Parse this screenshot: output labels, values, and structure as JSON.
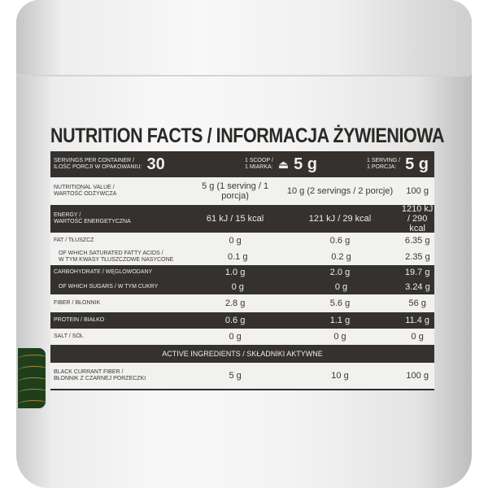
{
  "title": "NUTRITION FACTS / INFORMACJA ŻYWIENIOWA",
  "header": {
    "servings_label_en": "SERVINGS PER CONTAINER /",
    "servings_label_pl": "ILOŚĆ PORCJI W OPAKOWANIU:",
    "servings": "30",
    "scoop_en": "1 SCOOP /",
    "scoop_pl": "1 MIARKA:",
    "scoop_value": "5 g",
    "serving_en": "1 SERVING /",
    "serving_pl": "1 PORCJA:",
    "serving_value": "5 g"
  },
  "columns": {
    "label_en": "NUTRITIONAL VALUE /",
    "label_pl": "WARTOŚĆ ODŻYWCZA",
    "c1": "5 g (1 serving / 1 porcja)",
    "c2": "10 g (2 servings / 2 porcje)",
    "c3": "100 g"
  },
  "rows": [
    {
      "en": "ENERGY /",
      "pl": "WARTOŚĆ ENERGETYCZNA",
      "v": [
        "61 kJ / 15 kcal",
        "121 kJ / 29 kcal",
        "1210 kJ / 290 kcal"
      ]
    },
    {
      "en": "FAT / TŁUSZCZ",
      "v": [
        "0 g",
        "0.6 g",
        "6.35 g"
      ]
    },
    {
      "en": "OF WHICH SATURATED FATTY ACIDS /",
      "pl": "W TYM KWASY TŁUSZCZOWE NASYCONE",
      "v": [
        "0.1 g",
        "0.2 g",
        "2.35 g"
      ]
    },
    {
      "en": "CARBOHYDRATE / WĘGLOWODANY",
      "v": [
        "1.0 g",
        "2.0 g",
        "19.7 g"
      ]
    },
    {
      "en": "OF WHICH SUGARS / W TYM CUKRY",
      "v": [
        "0 g",
        "0 g",
        "3.24 g"
      ]
    },
    {
      "en": "FIBER / BŁONNIK",
      "v": [
        "2.8 g",
        "5.6 g",
        "56 g"
      ]
    },
    {
      "en": "PROTEIN / BIAŁKO",
      "v": [
        "0.6 g",
        "1.1 g",
        "11.4 g"
      ]
    },
    {
      "en": "SALT / SÓL",
      "v": [
        "0 g",
        "0 g",
        "0 g"
      ]
    }
  ],
  "active_header": "ACTIVE INGREDIENTS / SKŁADNIKI AKTYWNE",
  "active": {
    "en": "BLACK CURRANT FIBER /",
    "pl": "BŁONNIK Z CZARNEJ PORZECZKI",
    "v": [
      "5 g",
      "10 g",
      "100 g"
    ]
  }
}
